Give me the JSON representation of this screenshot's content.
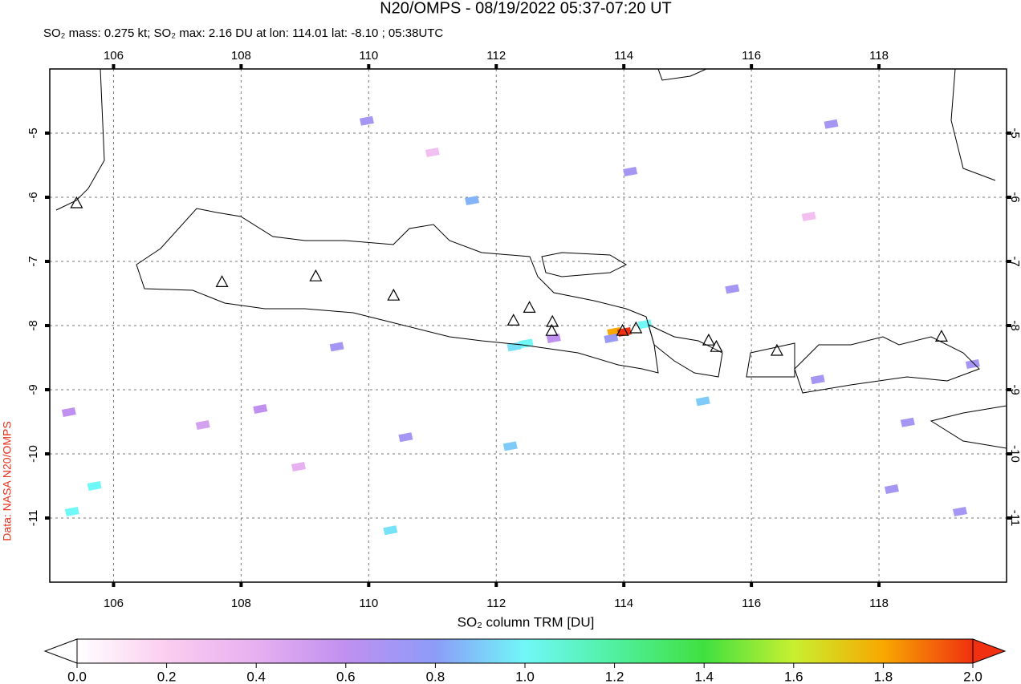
{
  "chart_data": {
    "type": "map",
    "title": "N20/OMPS - 08/19/2022 05:37-07:20 UT",
    "subtitle": "SO₂ mass: 0.275 kt; SO₂ max: 2.16 DU at lon: 114.01 lat: -8.10 ; 05:38UTC",
    "credit": "Data: NASA N20/OMPS",
    "xlim": [
      105,
      120
    ],
    "ylim": [
      -12,
      -4
    ],
    "xticks": [
      106,
      108,
      110,
      112,
      114,
      116,
      118
    ],
    "yticks": [
      -5,
      -6,
      -7,
      -8,
      -9,
      -10,
      -11
    ],
    "grid": true,
    "pixels": {
      "lon": [
        113.85,
        114.01,
        114.33,
        112.47,
        112.28,
        111.62,
        110.34,
        112.22,
        115.24,
        105.7,
        105.35,
        109.97,
        109.5,
        114.1,
        117.25,
        110.58,
        108.3,
        115.7,
        118.2,
        119.27,
        117.04,
        119.47,
        118.45,
        107.4,
        105.3,
        112.9,
        113.8,
        111.0,
        116.9,
        108.9
      ],
      "lat": [
        -8.1,
        -8.1,
        -7.98,
        -8.28,
        -8.33,
        -6.05,
        -11.19,
        -9.88,
        -9.18,
        -10.5,
        -10.9,
        -4.81,
        -8.33,
        -5.6,
        -4.86,
        -9.74,
        -9.3,
        -7.43,
        -10.55,
        -10.9,
        -8.84,
        -8.6,
        -9.51,
        -9.55,
        -9.35,
        -8.2,
        -8.2,
        -5.3,
        -6.3,
        -10.2
      ],
      "values": [
        1.8,
        2.16,
        1.0,
        1.0,
        0.95,
        0.85,
        0.95,
        0.9,
        0.9,
        1.0,
        1.0,
        0.7,
        0.7,
        0.7,
        0.7,
        0.7,
        0.6,
        0.7,
        0.7,
        0.7,
        0.7,
        0.7,
        0.7,
        0.5,
        0.6,
        0.6,
        0.75,
        0.3,
        0.3,
        0.4
      ]
    },
    "volcanoes": {
      "lon": [
        105.42,
        107.7,
        109.17,
        110.39,
        112.27,
        112.52,
        112.88,
        112.87,
        113.98,
        114.19,
        115.33,
        115.45,
        116.4,
        118.98
      ],
      "lat": [
        -6.1,
        -7.33,
        -7.24,
        -7.54,
        -7.93,
        -7.73,
        -7.95,
        -8.09,
        -8.09,
        -8.05,
        -8.24,
        -8.34,
        -8.4,
        -8.18
      ]
    },
    "colorbar": {
      "label": "SO₂ column TRM [DU]",
      "lim": [
        0,
        2
      ],
      "ticks": [
        {
          "value": 0,
          "label": "0.0"
        },
        {
          "value": 0.2,
          "label": "0.2"
        },
        {
          "value": 0.4,
          "label": "0.4"
        },
        {
          "value": 0.6,
          "label": "0.6"
        },
        {
          "value": 0.8,
          "label": "0.8"
        },
        {
          "value": 1.0,
          "label": "1.0"
        },
        {
          "value": 1.2,
          "label": "1.2"
        },
        {
          "value": 1.4,
          "label": "1.4"
        },
        {
          "value": 1.6,
          "label": "1.6"
        },
        {
          "value": 1.8,
          "label": "1.8"
        },
        {
          "value": 2.0,
          "label": "2.0"
        }
      ],
      "colors": [
        "#ffffff",
        "#fbcdf0",
        "#e7b0f0",
        "#c090f0",
        "#8c9cf8",
        "#70f8f8",
        "#50f0a0",
        "#40e040",
        "#c8f030",
        "#f8a800",
        "#f03010"
      ]
    }
  }
}
